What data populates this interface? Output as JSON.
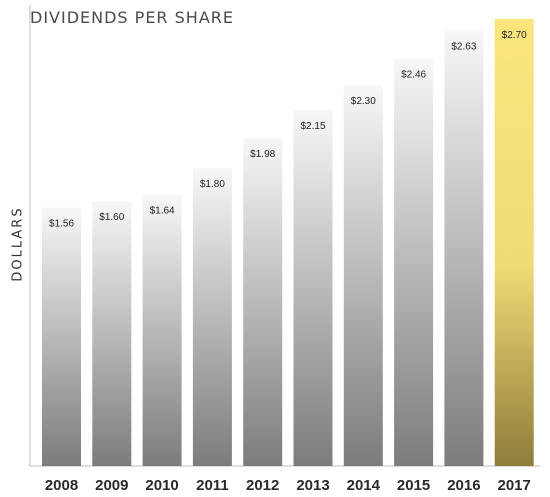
{
  "chart_data": {
    "type": "bar",
    "title": "DIVIDENDS PER SHARE",
    "xlabel": "",
    "ylabel": "DOLLARS",
    "categories": [
      "2008",
      "2009",
      "2010",
      "2011",
      "2012",
      "2013",
      "2014",
      "2015",
      "2016",
      "2017"
    ],
    "values": [
      1.56,
      1.6,
      1.64,
      1.8,
      1.98,
      2.15,
      2.3,
      2.46,
      2.63,
      2.7
    ],
    "data_labels": [
      "$1.56",
      "$1.60",
      "$1.64",
      "$1.80",
      "$1.98",
      "$2.15",
      "$2.30",
      "$2.46",
      "$2.63",
      "$2.70"
    ],
    "highlight_index": 9,
    "colors": {
      "bar_top": "#f7f7f7",
      "bar_bottom": "#7c7c7c",
      "highlight_top": "#fbe57c",
      "highlight_mid": "#f1db77",
      "highlight_bottom": "#8e7d3a",
      "axis": "#bcbcbc",
      "label": "#222222"
    },
    "grid": false,
    "legend": "none"
  }
}
